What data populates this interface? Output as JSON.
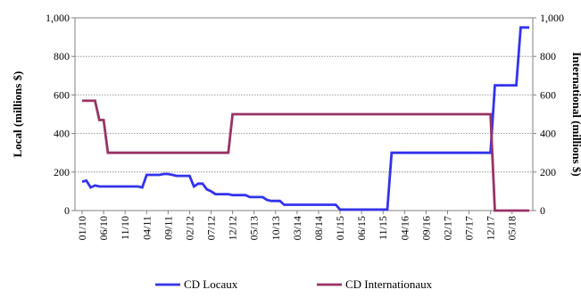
{
  "chart_data": {
    "type": "line",
    "xlabel": "",
    "ylabel": "Local (millions $)",
    "y2label": "International (millions $)",
    "ylim": [
      0,
      1000
    ],
    "y2lim": [
      0,
      1000
    ],
    "yticks": [
      "0",
      "200",
      "400",
      "600",
      "800",
      "1,000"
    ],
    "y2ticks": [
      "0",
      "200",
      "400",
      "600",
      "800",
      "1,000"
    ],
    "grid": "horizontal",
    "legend_position": "bottom",
    "x_tick_labels": [
      "01/10",
      "06/10",
      "11/10",
      "04/11",
      "09/11",
      "02/12",
      "07/12",
      "12/12",
      "05/13",
      "10/13",
      "03/14",
      "08/14",
      "01/15",
      "06/15",
      "11/15",
      "04/16",
      "09/16",
      "02/17",
      "07/17",
      "12/17",
      "05/18"
    ],
    "series": [
      {
        "name": "CD Locaux",
        "axis": "left",
        "color": "#3333ee",
        "points": [
          [
            "01/10",
            150
          ],
          [
            "02/10",
            155
          ],
          [
            "03/10",
            120
          ],
          [
            "04/10",
            130
          ],
          [
            "05/10",
            125
          ],
          [
            "06/10",
            125
          ],
          [
            "07/10",
            125
          ],
          [
            "08/10",
            125
          ],
          [
            "09/10",
            125
          ],
          [
            "10/10",
            125
          ],
          [
            "11/10",
            125
          ],
          [
            "12/10",
            125
          ],
          [
            "01/11",
            125
          ],
          [
            "02/11",
            125
          ],
          [
            "03/11",
            120
          ],
          [
            "04/11",
            185
          ],
          [
            "05/11",
            185
          ],
          [
            "06/11",
            185
          ],
          [
            "07/11",
            185
          ],
          [
            "08/11",
            190
          ],
          [
            "09/11",
            190
          ],
          [
            "10/11",
            185
          ],
          [
            "11/11",
            180
          ],
          [
            "12/11",
            180
          ],
          [
            "01/12",
            180
          ],
          [
            "02/12",
            180
          ],
          [
            "03/12",
            125
          ],
          [
            "04/12",
            140
          ],
          [
            "05/12",
            140
          ],
          [
            "06/12",
            110
          ],
          [
            "07/12",
            100
          ],
          [
            "08/12",
            85
          ],
          [
            "09/12",
            85
          ],
          [
            "10/12",
            85
          ],
          [
            "11/12",
            85
          ],
          [
            "12/12",
            80
          ],
          [
            "01/13",
            80
          ],
          [
            "02/13",
            80
          ],
          [
            "03/13",
            80
          ],
          [
            "04/13",
            70
          ],
          [
            "05/13",
            70
          ],
          [
            "06/13",
            70
          ],
          [
            "07/13",
            70
          ],
          [
            "08/13",
            55
          ],
          [
            "09/13",
            50
          ],
          [
            "10/13",
            50
          ],
          [
            "11/13",
            50
          ],
          [
            "12/13",
            30
          ],
          [
            "01/14",
            30
          ],
          [
            "02/14",
            30
          ],
          [
            "03/14",
            30
          ],
          [
            "04/14",
            30
          ],
          [
            "05/14",
            30
          ],
          [
            "06/14",
            30
          ],
          [
            "07/14",
            30
          ],
          [
            "08/14",
            30
          ],
          [
            "09/14",
            30
          ],
          [
            "10/14",
            30
          ],
          [
            "11/14",
            30
          ],
          [
            "12/14",
            30
          ],
          [
            "01/15",
            5
          ],
          [
            "02/15",
            5
          ],
          [
            "03/15",
            5
          ],
          [
            "04/15",
            5
          ],
          [
            "05/15",
            5
          ],
          [
            "06/15",
            5
          ],
          [
            "07/15",
            5
          ],
          [
            "08/15",
            5
          ],
          [
            "09/15",
            5
          ],
          [
            "10/15",
            5
          ],
          [
            "11/15",
            5
          ],
          [
            "12/15",
            5
          ],
          [
            "01/16",
            300
          ],
          [
            "02/16",
            300
          ],
          [
            "03/16",
            300
          ],
          [
            "04/16",
            300
          ],
          [
            "05/16",
            300
          ],
          [
            "06/16",
            300
          ],
          [
            "07/16",
            300
          ],
          [
            "08/16",
            300
          ],
          [
            "09/16",
            300
          ],
          [
            "10/16",
            300
          ],
          [
            "11/16",
            300
          ],
          [
            "12/16",
            300
          ],
          [
            "01/17",
            300
          ],
          [
            "02/17",
            300
          ],
          [
            "03/17",
            300
          ],
          [
            "04/17",
            300
          ],
          [
            "05/17",
            300
          ],
          [
            "06/17",
            300
          ],
          [
            "07/17",
            300
          ],
          [
            "08/17",
            300
          ],
          [
            "09/17",
            300
          ],
          [
            "10/17",
            300
          ],
          [
            "11/17",
            300
          ],
          [
            "12/17",
            300
          ],
          [
            "01/18",
            650
          ],
          [
            "02/18",
            650
          ],
          [
            "03/18",
            650
          ],
          [
            "04/18",
            650
          ],
          [
            "05/18",
            650
          ],
          [
            "06/18",
            650
          ],
          [
            "07/18",
            950
          ],
          [
            "08/18",
            950
          ],
          [
            "09/18",
            950
          ]
        ]
      },
      {
        "name": "CD Internationaux",
        "axis": "right",
        "color": "#993366",
        "points": [
          [
            "01/10",
            570
          ],
          [
            "02/10",
            570
          ],
          [
            "03/10",
            570
          ],
          [
            "04/10",
            570
          ],
          [
            "05/10",
            470
          ],
          [
            "06/10",
            470
          ],
          [
            "07/10",
            300
          ],
          [
            "08/10",
            300
          ],
          [
            "09/10",
            300
          ],
          [
            "10/10",
            300
          ],
          [
            "11/10",
            300
          ],
          [
            "12/10",
            300
          ],
          [
            "01/11",
            300
          ],
          [
            "02/11",
            300
          ],
          [
            "03/11",
            300
          ],
          [
            "04/11",
            300
          ],
          [
            "05/11",
            300
          ],
          [
            "06/11",
            300
          ],
          [
            "07/11",
            300
          ],
          [
            "08/11",
            300
          ],
          [
            "09/11",
            300
          ],
          [
            "10/11",
            300
          ],
          [
            "11/11",
            300
          ],
          [
            "12/11",
            300
          ],
          [
            "01/12",
            300
          ],
          [
            "02/12",
            300
          ],
          [
            "03/12",
            300
          ],
          [
            "04/12",
            300
          ],
          [
            "05/12",
            300
          ],
          [
            "06/12",
            300
          ],
          [
            "07/12",
            300
          ],
          [
            "08/12",
            300
          ],
          [
            "09/12",
            300
          ],
          [
            "10/12",
            300
          ],
          [
            "11/12",
            300
          ],
          [
            "12/12",
            500
          ],
          [
            "01/13",
            500
          ],
          [
            "02/13",
            500
          ],
          [
            "03/13",
            500
          ],
          [
            "04/13",
            500
          ],
          [
            "05/13",
            500
          ],
          [
            "06/13",
            500
          ],
          [
            "07/13",
            500
          ],
          [
            "08/13",
            500
          ],
          [
            "09/13",
            500
          ],
          [
            "10/13",
            500
          ],
          [
            "11/13",
            500
          ],
          [
            "12/13",
            500
          ],
          [
            "01/14",
            500
          ],
          [
            "02/14",
            500
          ],
          [
            "03/14",
            500
          ],
          [
            "04/14",
            500
          ],
          [
            "05/14",
            500
          ],
          [
            "06/14",
            500
          ],
          [
            "07/14",
            500
          ],
          [
            "08/14",
            500
          ],
          [
            "09/14",
            500
          ],
          [
            "10/14",
            500
          ],
          [
            "11/14",
            500
          ],
          [
            "12/14",
            500
          ],
          [
            "01/15",
            500
          ],
          [
            "02/15",
            500
          ],
          [
            "03/15",
            500
          ],
          [
            "04/15",
            500
          ],
          [
            "05/15",
            500
          ],
          [
            "06/15",
            500
          ],
          [
            "07/15",
            500
          ],
          [
            "08/15",
            500
          ],
          [
            "09/15",
            500
          ],
          [
            "10/15",
            500
          ],
          [
            "11/15",
            500
          ],
          [
            "12/15",
            500
          ],
          [
            "01/16",
            500
          ],
          [
            "02/16",
            500
          ],
          [
            "03/16",
            500
          ],
          [
            "04/16",
            500
          ],
          [
            "05/16",
            500
          ],
          [
            "06/16",
            500
          ],
          [
            "07/16",
            500
          ],
          [
            "08/16",
            500
          ],
          [
            "09/16",
            500
          ],
          [
            "10/16",
            500
          ],
          [
            "11/16",
            500
          ],
          [
            "12/16",
            500
          ],
          [
            "01/17",
            500
          ],
          [
            "02/17",
            500
          ],
          [
            "03/17",
            500
          ],
          [
            "04/17",
            500
          ],
          [
            "05/17",
            500
          ],
          [
            "06/17",
            500
          ],
          [
            "07/17",
            500
          ],
          [
            "08/17",
            500
          ],
          [
            "09/17",
            500
          ],
          [
            "10/17",
            500
          ],
          [
            "11/17",
            500
          ],
          [
            "12/17",
            500
          ],
          [
            "01/18",
            0
          ],
          [
            "02/18",
            0
          ],
          [
            "03/18",
            0
          ],
          [
            "04/18",
            0
          ],
          [
            "05/18",
            0
          ],
          [
            "06/18",
            0
          ],
          [
            "07/18",
            0
          ],
          [
            "08/18",
            0
          ],
          [
            "09/18",
            0
          ]
        ]
      }
    ]
  }
}
